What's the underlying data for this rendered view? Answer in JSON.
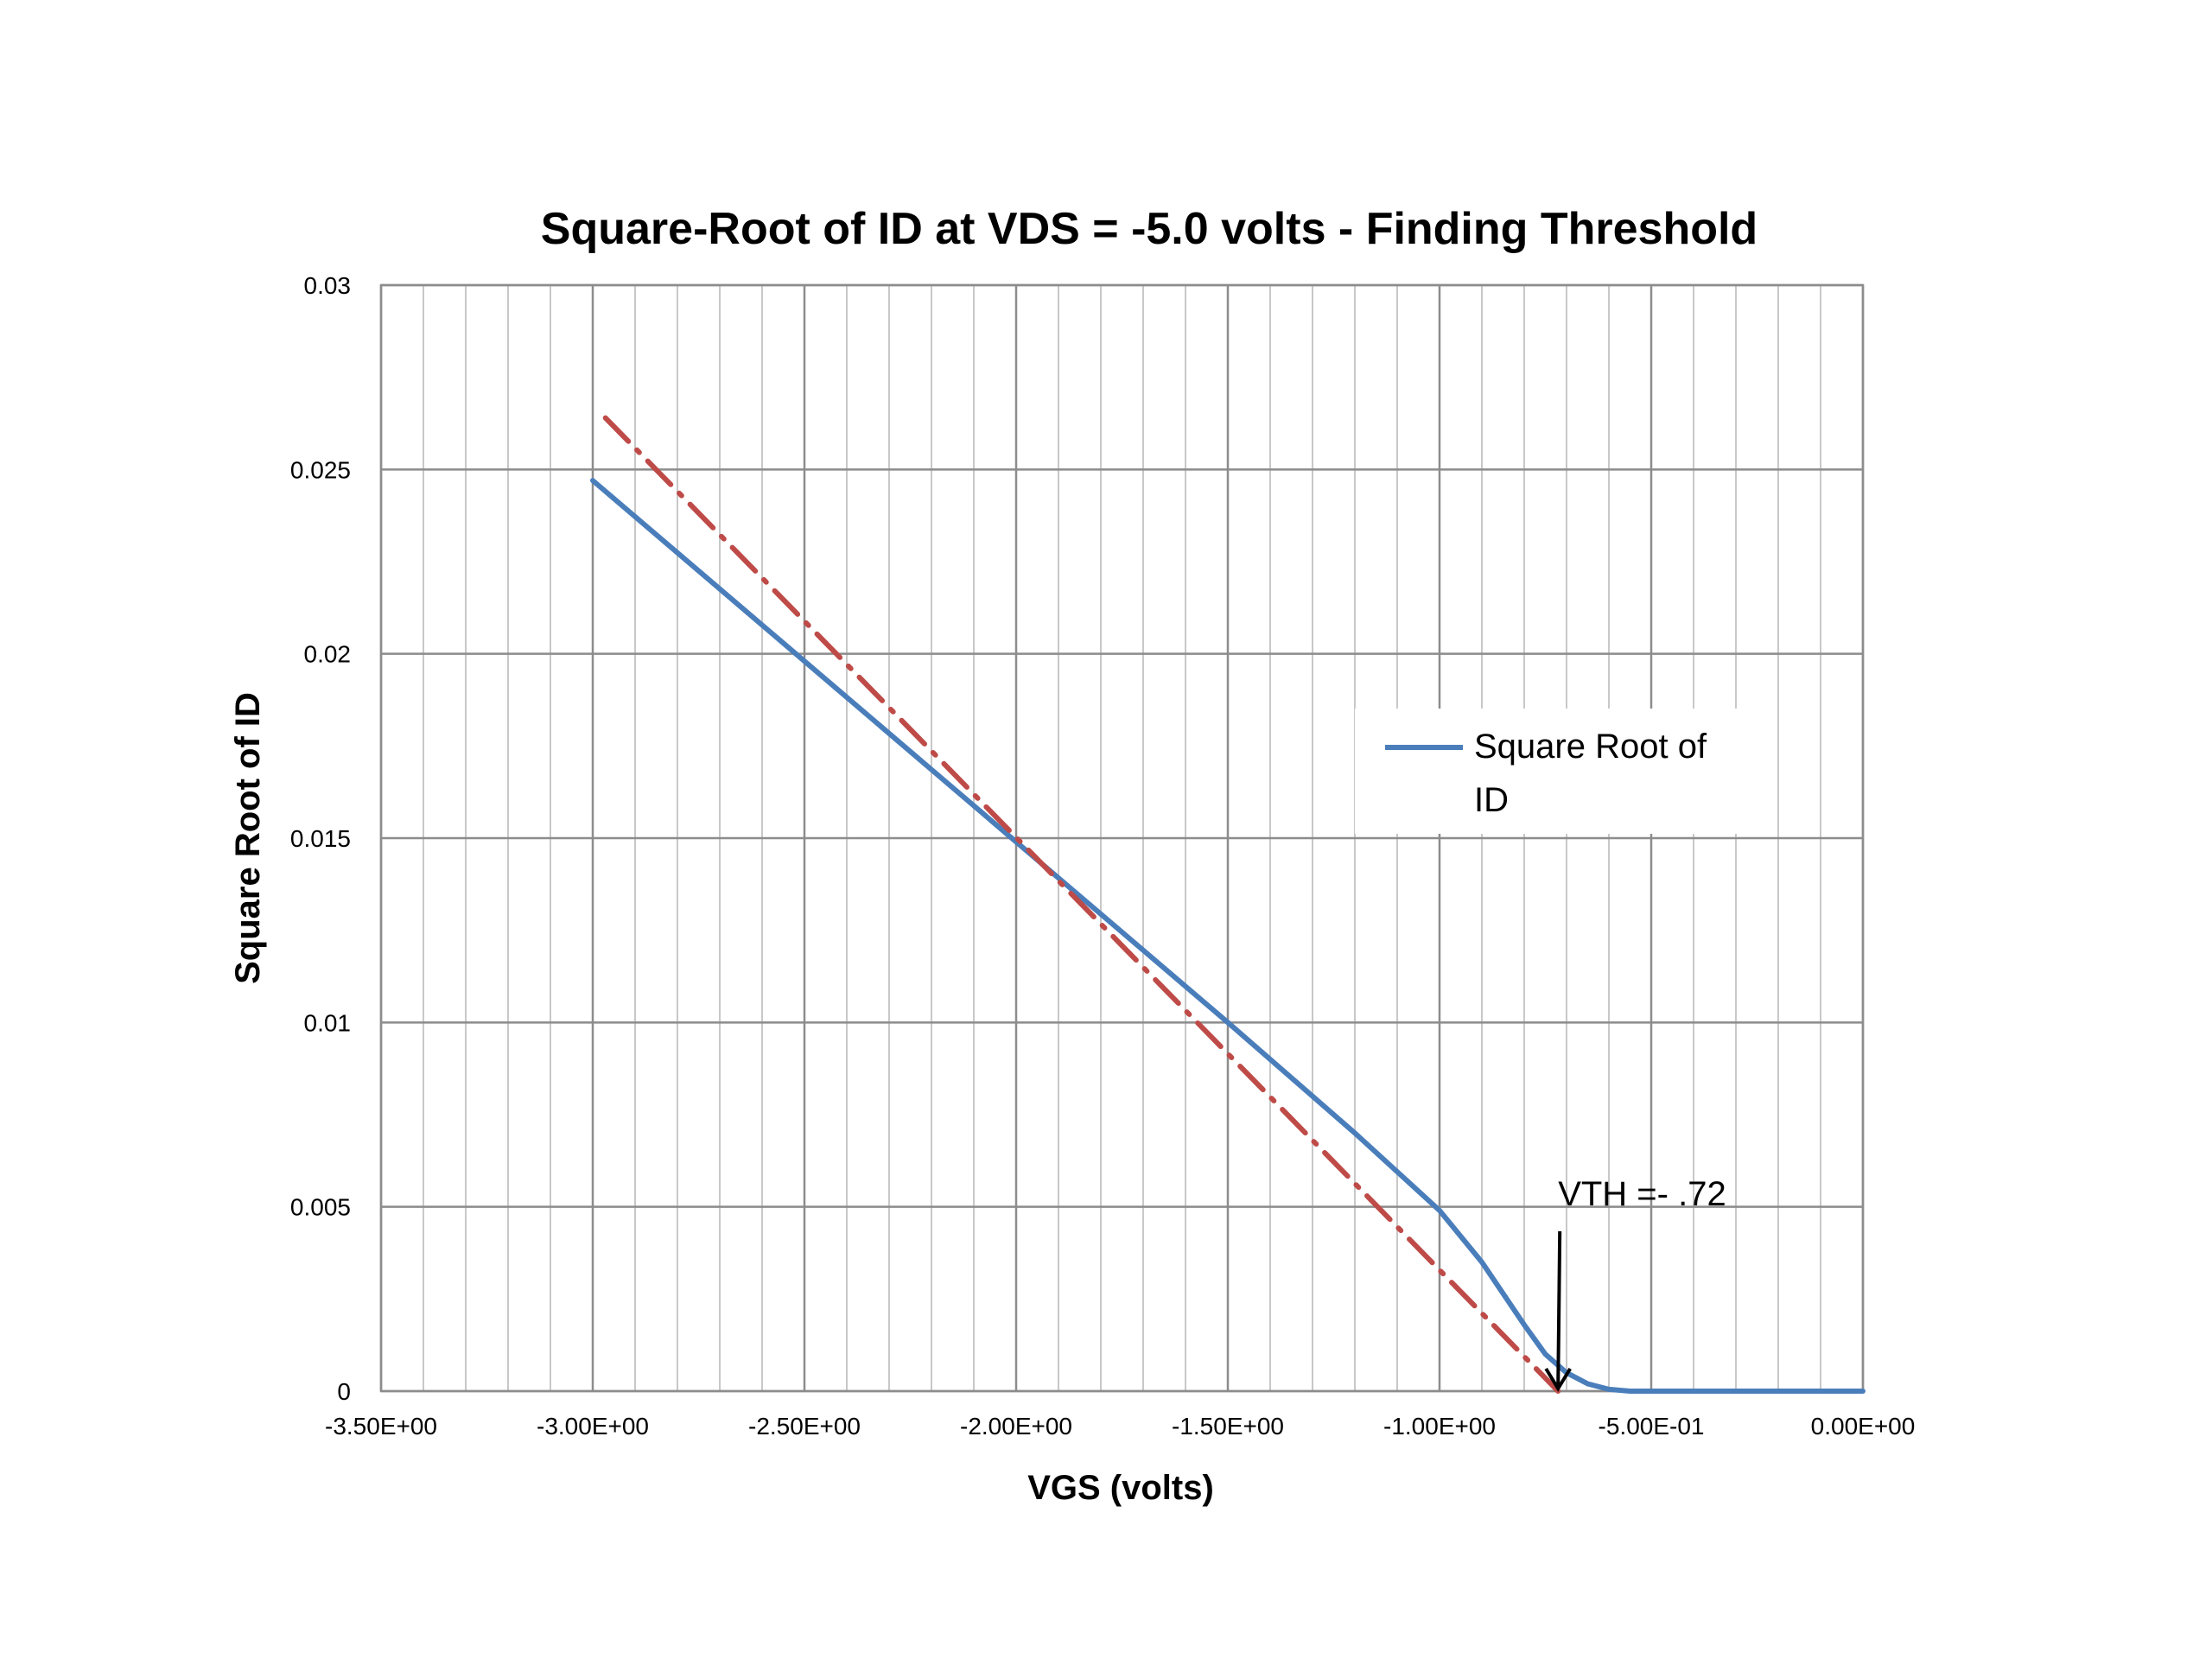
{
  "chart_data": {
    "type": "line",
    "title": "Square-Root of ID at VDS = -5.0 volts - Finding Threshold",
    "xlabel": "VGS (volts)",
    "ylabel": "Square Root of ID",
    "xlim": [
      -3.5,
      0
    ],
    "ylim": [
      0,
      0.03
    ],
    "x_ticks": [
      -3.5,
      -3.0,
      -2.5,
      -2.0,
      -1.5,
      -1.0,
      -0.5,
      0.0
    ],
    "x_tick_labels": [
      "-3.50E+00",
      "-3.00E+00",
      "-2.50E+00",
      "-2.00E+00",
      "-1.50E+00",
      "-1.00E+00",
      "-5.00E-01",
      "0.00E+00"
    ],
    "y_ticks": [
      0,
      0.005,
      0.01,
      0.015,
      0.02,
      0.025,
      0.03
    ],
    "y_tick_labels": [
      "0",
      "0.005",
      "0.01",
      "0.015",
      "0.02",
      "0.025",
      "0.03"
    ],
    "grid": true,
    "minor_x_step": 0.1,
    "legend_position": "right",
    "series": [
      {
        "name": "Square Root of ID",
        "color": "#4a7ebb",
        "style": "solid",
        "x": [
          -3.0,
          -2.5,
          -2.0,
          -1.5,
          -1.2,
          -1.0,
          -0.9,
          -0.8,
          -0.75,
          -0.7,
          -0.65,
          -0.6,
          -0.55,
          -0.5,
          -0.4,
          -0.2,
          0.0
        ],
        "y": [
          0.0247,
          0.0198,
          0.0149,
          0.01,
          0.007,
          0.0049,
          0.0035,
          0.0018,
          0.001,
          0.0005,
          0.0002,
          5e-05,
          0.0,
          0.0,
          0.0,
          0.0,
          0.0
        ]
      },
      {
        "color": "#be4b48",
        "style": "dash-dot",
        "x": [
          -2.97,
          -0.72
        ],
        "y": [
          0.0264,
          0.0
        ]
      }
    ],
    "annotations": [
      {
        "text": "VTH =- .72",
        "x": -0.72,
        "y": 0.0
      }
    ]
  }
}
